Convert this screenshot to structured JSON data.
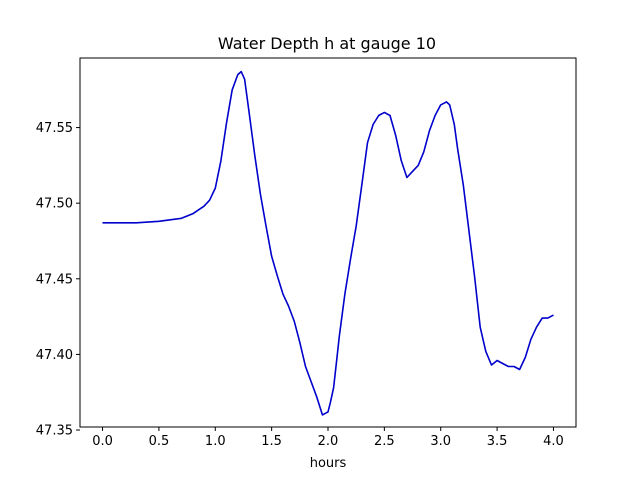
{
  "chart_data": {
    "type": "line",
    "title": "Water Depth h at gauge 10",
    "xlabel": "hours",
    "ylabel": "",
    "xlim": [
      -0.2,
      4.2
    ],
    "ylim": [
      47.352,
      47.596
    ],
    "grid": false,
    "legend": "none",
    "x_ticks": [
      0.0,
      0.5,
      1.0,
      1.5,
      2.0,
      2.5,
      3.0,
      3.5,
      4.0
    ],
    "x_tick_labels": [
      "0.0",
      "0.5",
      "1.0",
      "1.5",
      "2.0",
      "2.5",
      "3.0",
      "3.5",
      "4.0"
    ],
    "y_ticks": [
      47.35,
      47.4,
      47.45,
      47.5,
      47.55
    ],
    "y_tick_labels": [
      "47.35",
      "47.40",
      "47.45",
      "47.50",
      "47.55"
    ],
    "series": [
      {
        "color": "#0000cc",
        "x": [
          0.0,
          0.3,
          0.5,
          0.6,
          0.7,
          0.8,
          0.9,
          0.95,
          1.0,
          1.05,
          1.1,
          1.15,
          1.2,
          1.23,
          1.26,
          1.3,
          1.35,
          1.4,
          1.45,
          1.5,
          1.55,
          1.6,
          1.65,
          1.7,
          1.75,
          1.8,
          1.85,
          1.9,
          1.95,
          2.0,
          2.02,
          2.05,
          2.08,
          2.1,
          2.15,
          2.2,
          2.25,
          2.3,
          2.35,
          2.4,
          2.45,
          2.5,
          2.55,
          2.6,
          2.65,
          2.7,
          2.75,
          2.8,
          2.85,
          2.9,
          2.95,
          3.0,
          3.05,
          3.08,
          3.12,
          3.15,
          3.2,
          3.25,
          3.3,
          3.35,
          3.4,
          3.45,
          3.5,
          3.55,
          3.6,
          3.65,
          3.7,
          3.75,
          3.8,
          3.85,
          3.9,
          3.95,
          4.0
        ],
        "y": [
          47.487,
          47.487,
          47.488,
          47.489,
          47.49,
          47.493,
          47.498,
          47.502,
          47.51,
          47.528,
          47.553,
          47.575,
          47.585,
          47.587,
          47.582,
          47.56,
          47.532,
          47.506,
          47.485,
          47.465,
          47.452,
          47.44,
          47.432,
          47.422,
          47.408,
          47.392,
          47.382,
          47.372,
          47.36,
          47.362,
          47.368,
          47.378,
          47.398,
          47.412,
          47.44,
          47.463,
          47.485,
          47.512,
          47.54,
          47.552,
          47.558,
          47.56,
          47.558,
          47.545,
          47.528,
          47.517,
          47.521,
          47.525,
          47.534,
          47.548,
          47.558,
          47.565,
          47.567,
          47.565,
          47.552,
          47.536,
          47.512,
          47.482,
          47.452,
          47.418,
          47.402,
          47.393,
          47.396,
          47.394,
          47.392,
          47.392,
          47.39,
          47.398,
          47.41,
          47.418,
          47.424,
          47.424,
          47.426
        ]
      }
    ]
  }
}
